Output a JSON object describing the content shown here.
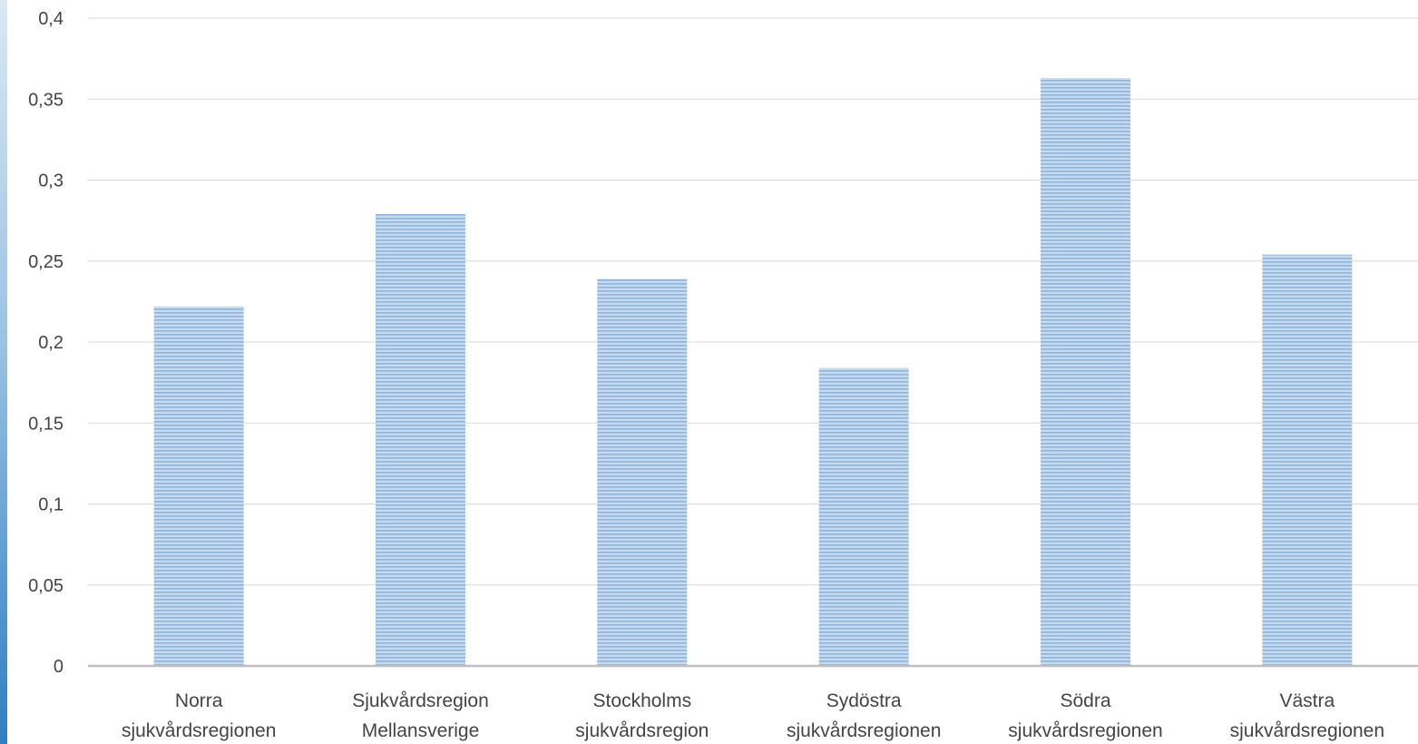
{
  "chart_data": {
    "type": "bar",
    "title": "",
    "xlabel": "",
    "ylabel": "",
    "categories": [
      [
        "Norra",
        "sjukvårdsregionen"
      ],
      [
        "Sjukvårdsregion",
        "Mellansverige"
      ],
      [
        "Stockholms",
        "sjukvårdsregion"
      ],
      [
        "Sydöstra",
        "sjukvårdsregionen"
      ],
      [
        "Södra",
        "sjukvårdsregionen"
      ],
      [
        "Västra",
        "sjukvårdsregionen"
      ]
    ],
    "values": [
      0.222,
      0.279,
      0.239,
      0.184,
      0.363,
      0.254
    ],
    "ylim": [
      0,
      0.4
    ],
    "yticks": [
      0,
      0.05,
      0.1,
      0.15,
      0.2,
      0.25,
      0.3,
      0.35,
      0.4
    ],
    "ytick_labels": [
      "0",
      "0,05",
      "0,1",
      "0,15",
      "0,2",
      "0,25",
      "0,3",
      "0,35",
      "0,4"
    ],
    "grid": true,
    "legend": "none",
    "colors": {
      "bar_fill": "#c8dbee",
      "bar_stripe": "#8fb3d9",
      "gridline": "#d9d9d9",
      "axis_line": "#bfbfbf",
      "text": "#444444"
    }
  }
}
